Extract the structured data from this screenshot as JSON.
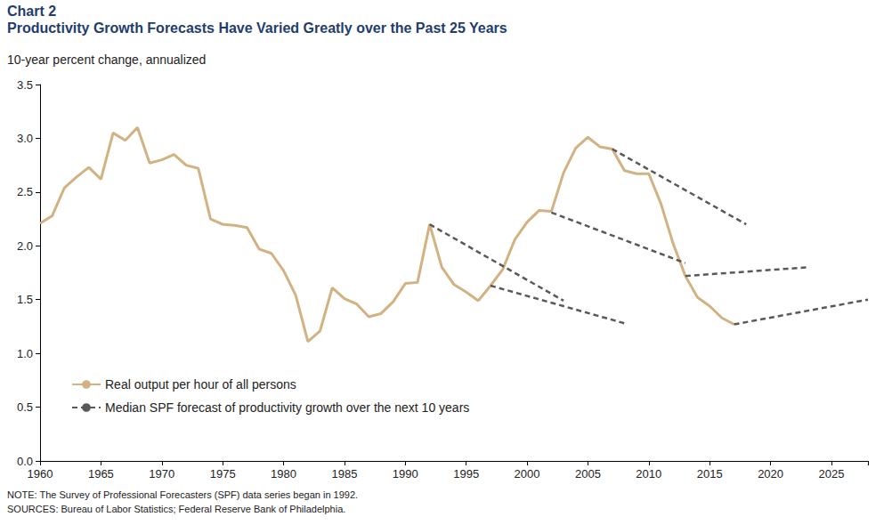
{
  "chart_data": {
    "type": "line",
    "title": "Chart 2",
    "subtitle": "Productivity Growth Forecasts Have Varied Greatly over the Past 25 Years",
    "y_label": "10-year percent change, annualized",
    "notes": [
      "NOTE: The Survey of Professional Forecasters (SPF) data series began in 1992.",
      "SOURCES: Bureau of Labor Statistics; Federal Reserve Bank of Philadelphia."
    ],
    "xlim": [
      1960,
      2028
    ],
    "xticks": [
      1960,
      1965,
      1970,
      1975,
      1980,
      1985,
      1990,
      1995,
      2000,
      2005,
      2010,
      2015,
      2020,
      2025
    ],
    "ylim": [
      0,
      3.5
    ],
    "yticks": [
      {
        "value": 0,
        "label": "0.0"
      },
      {
        "value": 0.5,
        "label": "0.5"
      },
      {
        "value": 1,
        "label": "1.0"
      },
      {
        "value": 1.5,
        "label": "1.5"
      },
      {
        "value": 2,
        "label": "2.0"
      },
      {
        "value": 2.5,
        "label": "2.5"
      },
      {
        "value": 3,
        "label": "3.0"
      },
      {
        "value": 3.5,
        "label": "3.5"
      }
    ],
    "grid": false,
    "legend": "lower left",
    "series": [
      {
        "name": "Real output per hour of all persons",
        "color": "#d2b282",
        "line_style": "solid",
        "x": [
          1960,
          1961,
          1962,
          1963,
          1964,
          1965,
          1966,
          1967,
          1968,
          1969,
          1970,
          1971,
          1972,
          1973,
          1974,
          1975,
          1976,
          1977,
          1978,
          1979,
          1980,
          1981,
          1982,
          1983,
          1984,
          1985,
          1986,
          1987,
          1988,
          1989,
          1990,
          1991,
          1992,
          1993,
          1994,
          1995,
          1996,
          1997,
          1998,
          1999,
          2000,
          2001,
          2002,
          2003,
          2004,
          2005,
          2006,
          2007,
          2008,
          2009,
          2010,
          2011,
          2012,
          2013,
          2014,
          2015,
          2016,
          2017
        ],
        "values": [
          2.21,
          2.28,
          2.54,
          2.64,
          2.73,
          2.62,
          3.05,
          2.98,
          3.1,
          2.77,
          2.8,
          2.85,
          2.75,
          2.72,
          2.25,
          2.2,
          2.19,
          2.17,
          1.97,
          1.93,
          1.77,
          1.54,
          1.11,
          1.21,
          1.61,
          1.51,
          1.46,
          1.34,
          1.37,
          1.48,
          1.65,
          1.66,
          2.2,
          1.8,
          1.64,
          1.57,
          1.49,
          1.63,
          1.78,
          2.06,
          2.22,
          2.33,
          2.32,
          2.68,
          2.91,
          3.01,
          2.92,
          2.9,
          2.7,
          2.67,
          2.67,
          2.39,
          2.02,
          1.72,
          1.52,
          1.44,
          1.33,
          1.27
        ]
      },
      {
        "name": "Median SPF forecast of productivity growth over the next 10 years",
        "color": "#595959",
        "line_style": "dashed",
        "x": [
          1992,
          2003
        ],
        "values": [
          2.2,
          1.49
        ]
      },
      {
        "name": "Median SPF forecast of productivity growth over the next 10 years",
        "color": "#595959",
        "line_style": "dashed",
        "x": [
          1997,
          2008
        ],
        "values": [
          1.63,
          1.28
        ]
      },
      {
        "name": "Median SPF forecast of productivity growth over the next 10 years",
        "color": "#595959",
        "line_style": "dashed",
        "x": [
          2002,
          2013
        ],
        "values": [
          2.31,
          1.84
        ]
      },
      {
        "name": "Median SPF forecast of productivity growth over the next 10 years",
        "color": "#595959",
        "line_style": "dashed",
        "x": [
          2007,
          2018
        ],
        "values": [
          2.9,
          2.2
        ]
      },
      {
        "name": "Median SPF forecast of productivity growth over the next 10 years",
        "color": "#595959",
        "line_style": "dashed",
        "x": [
          2013,
          2023
        ],
        "values": [
          1.72,
          1.8
        ]
      },
      {
        "name": "Median SPF forecast of productivity growth over the next 10 years",
        "color": "#595959",
        "line_style": "dashed",
        "x": [
          2017,
          2028
        ],
        "values": [
          1.27,
          1.5
        ]
      }
    ]
  }
}
